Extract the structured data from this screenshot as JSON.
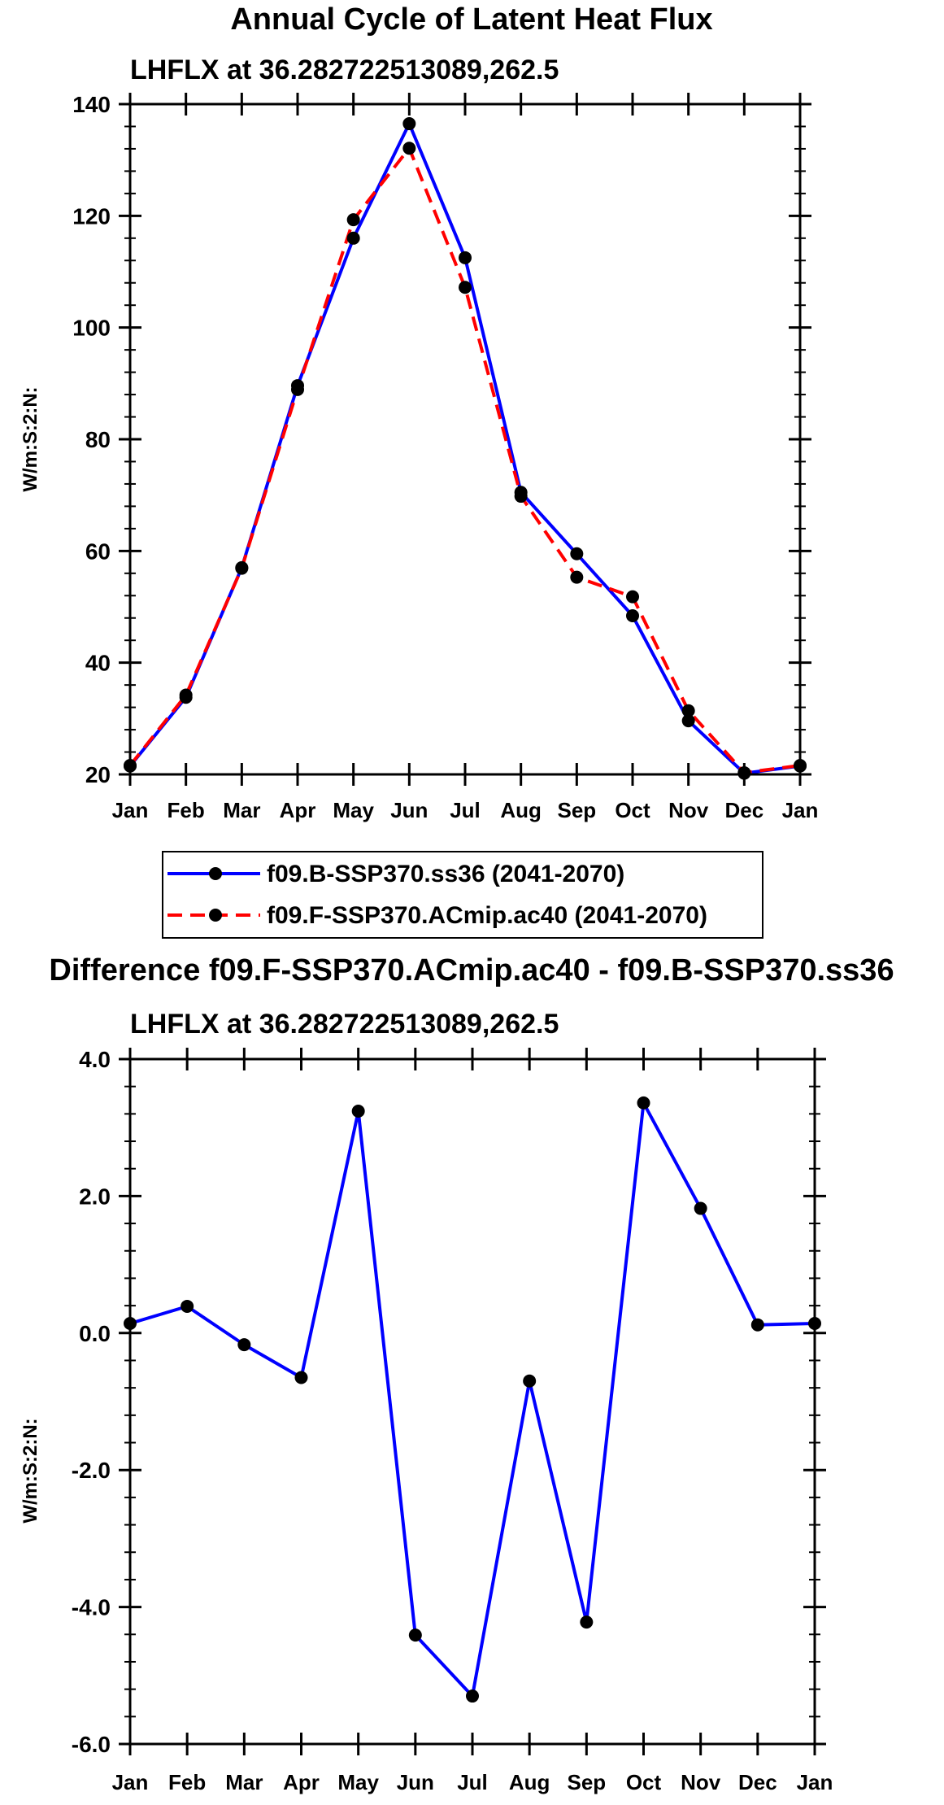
{
  "chart_data": [
    {
      "type": "line",
      "title": "Annual Cycle of Latent Heat Flux",
      "subtitle": "LHFLX at 36.282722513089,262.5",
      "xlabel": "",
      "ylabel": "W/m:S:2:N:",
      "categories": [
        "Jan",
        "Feb",
        "Mar",
        "Apr",
        "May",
        "Jun",
        "Jul",
        "Aug",
        "Sep",
        "Oct",
        "Nov",
        "Dec",
        "Jan"
      ],
      "ylim": [
        20,
        140
      ],
      "yticks": [
        20,
        40,
        60,
        80,
        100,
        120,
        140
      ],
      "ytick_labels": [
        "20",
        "40",
        "60",
        "80",
        "100",
        "120",
        "140"
      ],
      "series": [
        {
          "name": "f09.B-SSP370.ss36 (2041-2070)",
          "color": "#0000ff",
          "style": "solid",
          "values": [
            21.5,
            33.8,
            57.0,
            89.6,
            116.0,
            136.5,
            112.5,
            70.5,
            59.5,
            48.4,
            29.6,
            20.2,
            21.5
          ]
        },
        {
          "name": "f09.F-SSP370.ACmip.ac40 (2041-2070)",
          "color": "#ff0000",
          "style": "dashed",
          "values": [
            21.6,
            34.2,
            56.9,
            88.9,
            119.3,
            132.1,
            107.2,
            69.8,
            55.3,
            51.8,
            31.4,
            20.3,
            21.6
          ]
        }
      ],
      "legend": [
        "f09.B-SSP370.ss36 (2041-2070)",
        "f09.F-SSP370.ACmip.ac40 (2041-2070)"
      ],
      "legend_position": "bottom"
    },
    {
      "type": "line",
      "title": "Difference f09.F-SSP370.ACmip.ac40 - f09.B-SSP370.ss36",
      "subtitle": "LHFLX at 36.282722513089,262.5",
      "xlabel": "",
      "ylabel": "W/m:S:2:N:",
      "categories": [
        "Jan",
        "Feb",
        "Mar",
        "Apr",
        "May",
        "Jun",
        "Jul",
        "Aug",
        "Sep",
        "Oct",
        "Nov",
        "Dec",
        "Jan"
      ],
      "ylim": [
        -6.0,
        4.0
      ],
      "yticks": [
        -6.0,
        -4.0,
        -2.0,
        0.0,
        2.0,
        4.0
      ],
      "ytick_labels": [
        "-6.0",
        "-4.0",
        "-2.0",
        "0.0",
        "2.0",
        "4.0"
      ],
      "series": [
        {
          "name": "Difference",
          "color": "#0000ff",
          "style": "solid",
          "values": [
            0.14,
            0.39,
            -0.17,
            -0.65,
            3.24,
            -4.41,
            -5.3,
            -0.7,
            -4.22,
            3.36,
            1.82,
            0.12,
            0.14
          ]
        }
      ]
    }
  ]
}
